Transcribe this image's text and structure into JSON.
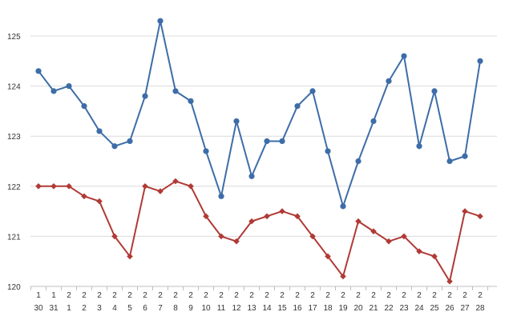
{
  "chart_data": {
    "type": "line",
    "x": [
      [
        "1",
        "30"
      ],
      [
        "1",
        "31"
      ],
      [
        "2",
        "1"
      ],
      [
        "2",
        "2"
      ],
      [
        "2",
        "3"
      ],
      [
        "2",
        "4"
      ],
      [
        "2",
        "5"
      ],
      [
        "2",
        "6"
      ],
      [
        "2",
        "7"
      ],
      [
        "2",
        "8"
      ],
      [
        "2",
        "9"
      ],
      [
        "2",
        "10"
      ],
      [
        "2",
        "11"
      ],
      [
        "2",
        "12"
      ],
      [
        "2",
        "13"
      ],
      [
        "2",
        "14"
      ],
      [
        "2",
        "15"
      ],
      [
        "2",
        "16"
      ],
      [
        "2",
        "17"
      ],
      [
        "2",
        "18"
      ],
      [
        "2",
        "19"
      ],
      [
        "2",
        "20"
      ],
      [
        "2",
        "21"
      ],
      [
        "2",
        "22"
      ],
      [
        "2",
        "23"
      ],
      [
        "2",
        "24"
      ],
      [
        "2",
        "25"
      ],
      [
        "2",
        "26"
      ],
      [
        "2",
        "27"
      ],
      [
        "2",
        "28"
      ]
    ],
    "series": [
      {
        "values": [
          124.3,
          123.9,
          124.0,
          123.6,
          123.1,
          122.8,
          122.9,
          123.8,
          125.3,
          123.9,
          123.7,
          122.7,
          121.8,
          123.3,
          122.2,
          122.9,
          122.9,
          123.6,
          123.9,
          122.7,
          121.6,
          122.5,
          123.3,
          124.1,
          124.6,
          122.8,
          123.9,
          122.5,
          122.6,
          124.5
        ],
        "color": "#3d6da8",
        "marker": "circle"
      },
      {
        "values": [
          122.0,
          122.0,
          122.0,
          121.8,
          121.7,
          121.0,
          120.6,
          122.0,
          121.9,
          122.1,
          122.0,
          121.4,
          121.0,
          120.9,
          121.3,
          121.4,
          121.5,
          121.4,
          121.0,
          120.6,
          120.2,
          121.3,
          121.1,
          120.9,
          121.0,
          120.7,
          120.6,
          120.1,
          121.5,
          121.4
        ],
        "color": "#b03a35",
        "marker": "diamond"
      }
    ],
    "yticks": [
      "120",
      "121",
      "122",
      "123",
      "124",
      "125"
    ],
    "ylim": [
      120,
      125.35
    ],
    "grid": true,
    "title": "",
    "xlabel": "",
    "ylabel": ""
  }
}
